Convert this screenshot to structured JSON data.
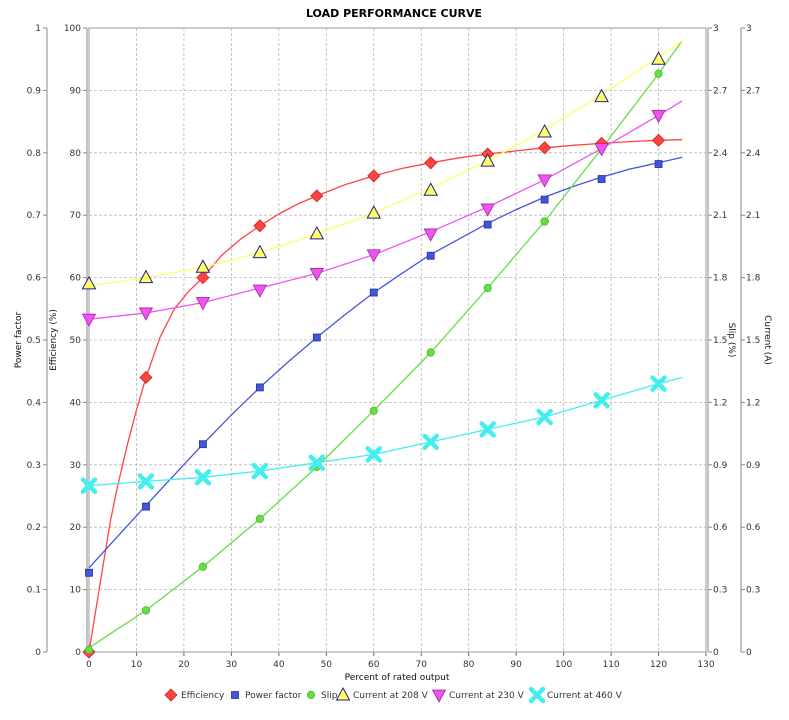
{
  "chart_data": {
    "type": "line",
    "title": "LOAD PERFORMANCE CURVE",
    "xlabel": "Percent of rated output",
    "xlim": [
      0,
      130
    ],
    "xticks": [
      0,
      10,
      20,
      30,
      40,
      50,
      60,
      70,
      80,
      90,
      100,
      110,
      120,
      130
    ],
    "grid": true,
    "legend_position": "bottom",
    "axes": {
      "power_factor": {
        "label": "Power factor",
        "side": "left-outer",
        "lim": [
          0,
          1
        ],
        "ticks": [
          "0",
          "0.1",
          "0.2",
          "0.3",
          "0.4",
          "0.5",
          "0.6",
          "0.7",
          "0.8",
          "0.9",
          "1"
        ]
      },
      "efficiency": {
        "label": "Efficiency (%)",
        "side": "left-inner",
        "lim": [
          0,
          100
        ],
        "ticks": [
          "0",
          "10",
          "20",
          "30",
          "40",
          "50",
          "60",
          "70",
          "80",
          "90",
          "100"
        ]
      },
      "slip": {
        "label": "Slip (%)",
        "side": "right-inner",
        "lim": [
          0,
          3
        ],
        "ticks": [
          "0",
          "0.3",
          "0.6",
          "0.9",
          "1.2",
          "1.5",
          "1.8",
          "2.1",
          "2.4",
          "2.7",
          "3"
        ]
      },
      "current": {
        "label": "Current (A)",
        "side": "right-outer",
        "lim": [
          0,
          3
        ],
        "ticks": [
          "0",
          "0.3",
          "0.6",
          "0.9",
          "1.2",
          "1.5",
          "1.8",
          "2.1",
          "2.4",
          "2.7",
          "3"
        ]
      }
    },
    "series": [
      {
        "name": "Efficiency",
        "axis": "efficiency",
        "color": "#ff4444",
        "marker": "diamond",
        "x": [
          0,
          12,
          24,
          36,
          48,
          60,
          72,
          84,
          96,
          108,
          120
        ],
        "y": [
          0,
          44,
          60,
          68.3,
          73.1,
          76.3,
          78.4,
          79.8,
          80.8,
          81.5,
          82
        ],
        "curve_x": [
          0,
          1.5,
          3,
          4.5,
          6,
          8,
          10,
          12,
          15,
          18,
          21,
          24,
          28,
          32,
          36,
          40,
          44,
          48,
          54,
          60,
          66,
          72,
          78,
          84,
          90,
          96,
          102,
          108,
          114,
          120,
          125
        ],
        "curve_y": [
          0,
          7,
          14,
          21,
          26.5,
          33,
          38.8,
          44,
          50.5,
          55,
          57.8,
          60,
          63.6,
          66.2,
          68.3,
          70.2,
          71.8,
          73.1,
          74.9,
          76.3,
          77.5,
          78.4,
          79.2,
          79.8,
          80.3,
          80.8,
          81.2,
          81.5,
          81.8,
          82,
          82.1
        ]
      },
      {
        "name": "Power factor",
        "axis": "power_factor",
        "color": "#4455dd",
        "marker": "square",
        "x": [
          0,
          12,
          24,
          36,
          48,
          60,
          72,
          84,
          96,
          108,
          120
        ],
        "y": [
          0.127,
          0.233,
          0.333,
          0.424,
          0.504,
          0.576,
          0.635,
          0.685,
          0.725,
          0.758,
          0.782
        ],
        "curve_x": [
          0,
          6,
          12,
          18,
          24,
          30,
          36,
          42,
          48,
          54,
          60,
          66,
          72,
          78,
          84,
          90,
          96,
          102,
          108,
          114,
          120,
          125
        ],
        "curve_y": [
          0.135,
          0.185,
          0.235,
          0.284,
          0.333,
          0.38,
          0.424,
          0.465,
          0.504,
          0.541,
          0.576,
          0.607,
          0.637,
          0.662,
          0.687,
          0.709,
          0.729,
          0.746,
          0.761,
          0.774,
          0.784,
          0.793
        ]
      },
      {
        "name": "Slip",
        "axis": "slip",
        "color": "#66dd44",
        "marker": "circle",
        "x": [
          0,
          12,
          24,
          36,
          48,
          60,
          72,
          84,
          96,
          108,
          120
        ],
        "y": [
          0.01,
          0.2,
          0.41,
          0.64,
          0.89,
          1.16,
          1.44,
          1.75,
          2.07,
          2.42,
          2.78
        ],
        "curve_x": [
          0,
          12,
          24,
          36,
          48,
          60,
          72,
          84,
          96,
          108,
          120,
          125
        ],
        "curve_y": [
          0.02,
          0.2,
          0.41,
          0.64,
          0.89,
          1.16,
          1.44,
          1.75,
          2.07,
          2.42,
          2.78,
          2.94
        ]
      },
      {
        "name": "Current at 208 V",
        "axis": "current",
        "color": "#ffff66",
        "marker": "triangle-up",
        "x": [
          0,
          12,
          24,
          36,
          48,
          60,
          72,
          84,
          96,
          108,
          120
        ],
        "y": [
          1.77,
          1.8,
          1.85,
          1.92,
          2.01,
          2.11,
          2.22,
          2.36,
          2.5,
          2.67,
          2.85
        ],
        "curve_x": [
          0,
          12,
          24,
          36,
          48,
          60,
          72,
          84,
          96,
          108,
          120,
          125
        ],
        "curve_y": [
          1.76,
          1.8,
          1.85,
          1.92,
          2.01,
          2.11,
          2.23,
          2.36,
          2.51,
          2.68,
          2.86,
          2.94
        ]
      },
      {
        "name": "Current at 230 V",
        "axis": "current",
        "color": "#ee55ee",
        "marker": "triangle-down",
        "x": [
          0,
          12,
          24,
          36,
          48,
          60,
          72,
          84,
          96,
          108,
          120
        ],
        "y": [
          1.6,
          1.63,
          1.68,
          1.74,
          1.82,
          1.91,
          2.01,
          2.13,
          2.27,
          2.42,
          2.58
        ],
        "curve_x": [
          0,
          12,
          24,
          36,
          48,
          60,
          72,
          84,
          96,
          108,
          120,
          125
        ],
        "curve_y": [
          1.6,
          1.63,
          1.68,
          1.75,
          1.82,
          1.91,
          2.02,
          2.14,
          2.27,
          2.42,
          2.58,
          2.65
        ]
      },
      {
        "name": "Current at 460 V",
        "axis": "current",
        "color": "#44eeee",
        "marker": "x",
        "x": [
          0,
          12,
          24,
          36,
          48,
          60,
          72,
          84,
          96,
          108,
          120
        ],
        "y": [
          0.8,
          0.82,
          0.84,
          0.87,
          0.91,
          0.95,
          1.01,
          1.07,
          1.13,
          1.21,
          1.29
        ],
        "curve_x": [
          0,
          12,
          24,
          36,
          48,
          60,
          72,
          84,
          96,
          108,
          120,
          125
        ],
        "curve_y": [
          0.8,
          0.82,
          0.84,
          0.87,
          0.91,
          0.95,
          1.01,
          1.07,
          1.13,
          1.21,
          1.29,
          1.32
        ]
      }
    ]
  }
}
